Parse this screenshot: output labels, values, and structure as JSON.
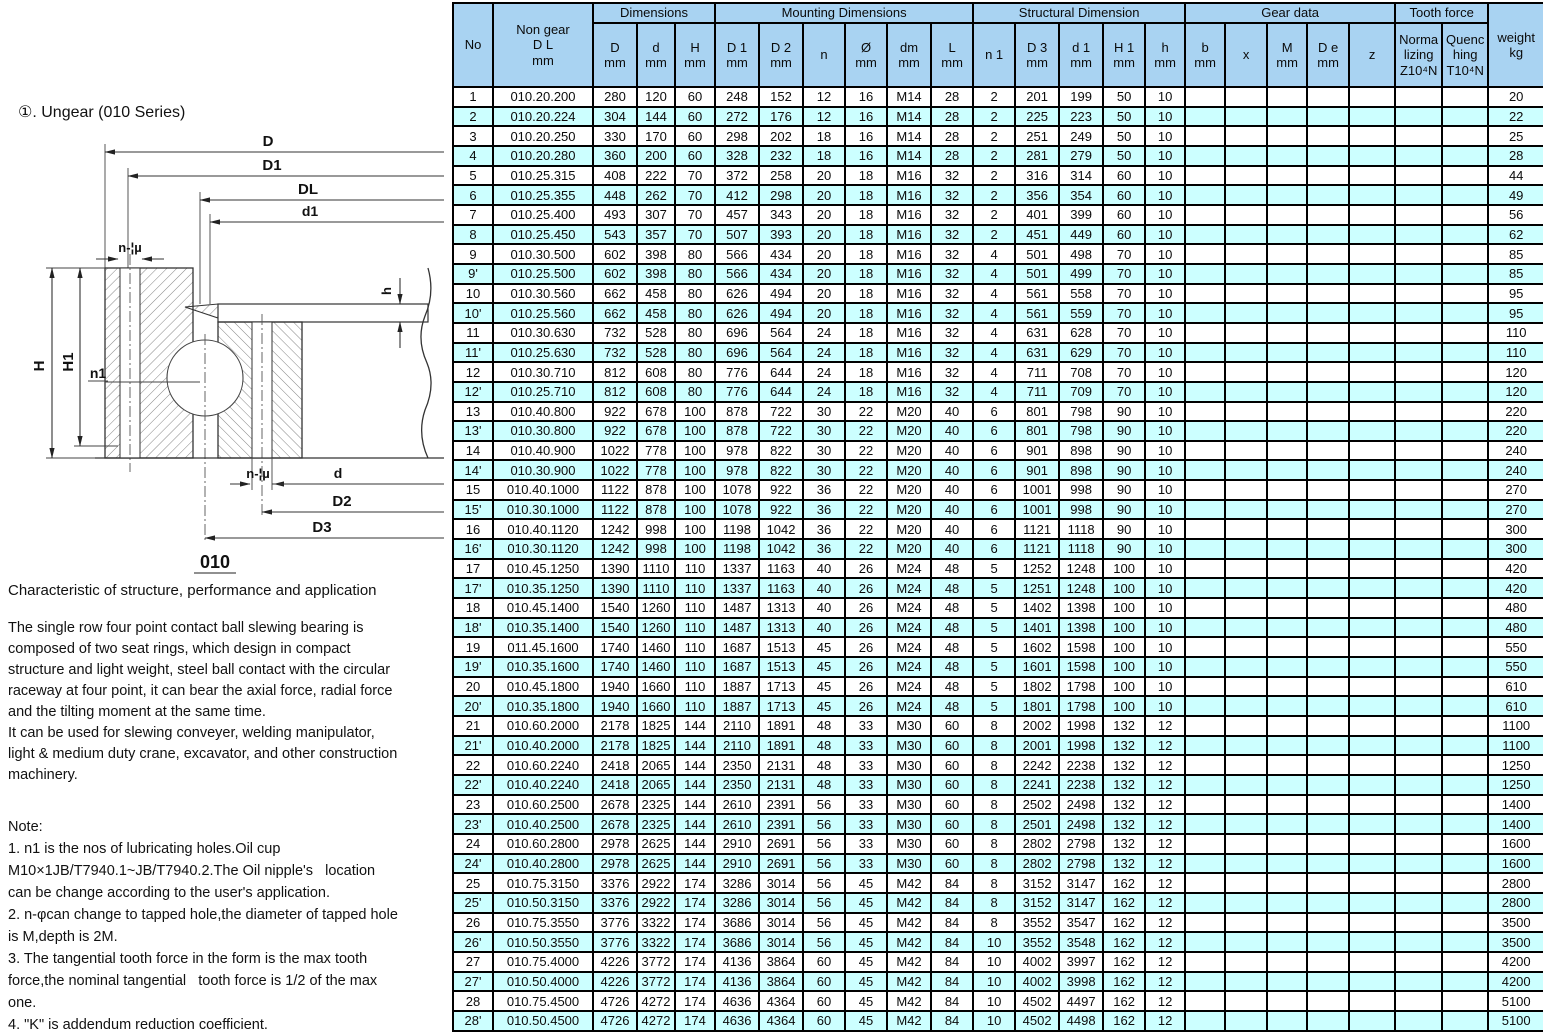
{
  "left_panel": {
    "series_title": "①. Ungear (010 Series)",
    "diagram": {
      "caption": "010",
      "labels": {
        "D": "D",
        "D1": "D1",
        "DL": "DL",
        "d1": "d1",
        "n_phi_top": "n-¦µ",
        "h": "h",
        "H": "H",
        "H1": "H1",
        "n1": "n1",
        "n_phi_bottom": "n-¦µ",
        "d": "d",
        "D2": "D2",
        "D3": "D3"
      }
    },
    "characteristic_heading": "Characteristic of structure, performance and application",
    "description": "The single row four point contact ball slewing bearing is\ncomposed of two seat rings, which design in compact\nstructure and light weight, steel ball contact with the circular\nraceway at four point, it can bear the axial force, radial force\nand the tilting moment at the same time.\nIt can be used for slewing conveyer, welding manipulator,\nlight & medium duty crane, excavator, and other construction\nmachinery.",
    "note": "Note:\n1. n1 is the nos of lubricating holes.Oil cup\nM10×1JB/T7940.1~JB/T7940.2.The Oil nipple's   location\ncan be change according to the user's application.\n2. n-φcan change to tapped hole,the diameter of tapped hole\nis M,depth is 2M.\n3. The tangential tooth force in the form is the max tooth\nforce,the nominal tangential   tooth force is 1/2 of the max\none.\n4. \"K\" is addendum reduction coefficient."
  },
  "table": {
    "header": {
      "no": "No",
      "non_gear": "Non gear\nD L\nmm",
      "groups": {
        "dimensions": "Dimensions",
        "mounting": "Mounting Dimensions",
        "structural": "Structural Dimension",
        "gear": "Gear data",
        "tooth": "Tooth force"
      },
      "weight": "weight\nkg",
      "sub": [
        "D\nmm",
        "d\nmm",
        "H\nmm",
        "D 1\nmm",
        "D 2\nmm",
        "n",
        "Ø\nmm",
        "dm\nmm",
        "L\nmm",
        "n 1",
        "D 3\nmm",
        "d 1\nmm",
        "H 1\nmm",
        "h\nmm",
        "b\nmm",
        "x",
        "M\nmm",
        "D e\nmm",
        "z",
        "Norma\nlizing\nZ10⁴N",
        "Quenc\nhing\nT10⁴N"
      ]
    },
    "column_keys": [
      "no",
      "model",
      "D",
      "d",
      "H",
      "D1",
      "D2",
      "n",
      "phi",
      "dm",
      "L",
      "n1",
      "D3",
      "d1",
      "H1",
      "h",
      "b",
      "x",
      "M",
      "De",
      "z",
      "normalizing",
      "quenching",
      "weight"
    ],
    "colors": {
      "header_bg": "#a9d3f2",
      "alt_row_bg": "#ccffff",
      "grid": "#000000"
    },
    "rows": [
      [
        "1",
        "010.20.200",
        "280",
        "120",
        "60",
        "248",
        "152",
        "12",
        "16",
        "M14",
        "28",
        "2",
        "201",
        "199",
        "50",
        "10",
        "",
        "",
        "",
        "",
        "",
        "",
        "",
        "20"
      ],
      [
        "2",
        "010.20.224",
        "304",
        "144",
        "60",
        "272",
        "176",
        "12",
        "16",
        "M14",
        "28",
        "2",
        "225",
        "223",
        "50",
        "10",
        "",
        "",
        "",
        "",
        "",
        "",
        "",
        "22"
      ],
      [
        "3",
        "010.20.250",
        "330",
        "170",
        "60",
        "298",
        "202",
        "18",
        "16",
        "M14",
        "28",
        "2",
        "251",
        "249",
        "50",
        "10",
        "",
        "",
        "",
        "",
        "",
        "",
        "",
        "25"
      ],
      [
        "4",
        "010.20.280",
        "360",
        "200",
        "60",
        "328",
        "232",
        "18",
        "16",
        "M14",
        "28",
        "2",
        "281",
        "279",
        "50",
        "10",
        "",
        "",
        "",
        "",
        "",
        "",
        "",
        "28"
      ],
      [
        "5",
        "010.25.315",
        "408",
        "222",
        "70",
        "372",
        "258",
        "20",
        "18",
        "M16",
        "32",
        "2",
        "316",
        "314",
        "60",
        "10",
        "",
        "",
        "",
        "",
        "",
        "",
        "",
        "44"
      ],
      [
        "6",
        "010.25.355",
        "448",
        "262",
        "70",
        "412",
        "298",
        "20",
        "18",
        "M16",
        "32",
        "2",
        "356",
        "354",
        "60",
        "10",
        "",
        "",
        "",
        "",
        "",
        "",
        "",
        "49"
      ],
      [
        "7",
        "010.25.400",
        "493",
        "307",
        "70",
        "457",
        "343",
        "20",
        "18",
        "M16",
        "32",
        "2",
        "401",
        "399",
        "60",
        "10",
        "",
        "",
        "",
        "",
        "",
        "",
        "",
        "56"
      ],
      [
        "8",
        "010.25.450",
        "543",
        "357",
        "70",
        "507",
        "393",
        "20",
        "18",
        "M16",
        "32",
        "2",
        "451",
        "449",
        "60",
        "10",
        "",
        "",
        "",
        "",
        "",
        "",
        "",
        "62"
      ],
      [
        "9",
        "010.30.500",
        "602",
        "398",
        "80",
        "566",
        "434",
        "20",
        "18",
        "M16",
        "32",
        "4",
        "501",
        "498",
        "70",
        "10",
        "",
        "",
        "",
        "",
        "",
        "",
        "",
        "85"
      ],
      [
        "9'",
        "010.25.500",
        "602",
        "398",
        "80",
        "566",
        "434",
        "20",
        "18",
        "M16",
        "32",
        "4",
        "501",
        "499",
        "70",
        "10",
        "",
        "",
        "",
        "",
        "",
        "",
        "",
        "85"
      ],
      [
        "10",
        "010.30.560",
        "662",
        "458",
        "80",
        "626",
        "494",
        "20",
        "18",
        "M16",
        "32",
        "4",
        "561",
        "558",
        "70",
        "10",
        "",
        "",
        "",
        "",
        "",
        "",
        "",
        "95"
      ],
      [
        "10'",
        "010.25.560",
        "662",
        "458",
        "80",
        "626",
        "494",
        "20",
        "18",
        "M16",
        "32",
        "4",
        "561",
        "559",
        "70",
        "10",
        "",
        "",
        "",
        "",
        "",
        "",
        "",
        "95"
      ],
      [
        "11",
        "010.30.630",
        "732",
        "528",
        "80",
        "696",
        "564",
        "24",
        "18",
        "M16",
        "32",
        "4",
        "631",
        "628",
        "70",
        "10",
        "",
        "",
        "",
        "",
        "",
        "",
        "",
        "110"
      ],
      [
        "11'",
        "010.25.630",
        "732",
        "528",
        "80",
        "696",
        "564",
        "24",
        "18",
        "M16",
        "32",
        "4",
        "631",
        "629",
        "70",
        "10",
        "",
        "",
        "",
        "",
        "",
        "",
        "",
        "110"
      ],
      [
        "12",
        "010.30.710",
        "812",
        "608",
        "80",
        "776",
        "644",
        "24",
        "18",
        "M16",
        "32",
        "4",
        "711",
        "708",
        "70",
        "10",
        "",
        "",
        "",
        "",
        "",
        "",
        "",
        "120"
      ],
      [
        "12'",
        "010.25.710",
        "812",
        "608",
        "80",
        "776",
        "644",
        "24",
        "18",
        "M16",
        "32",
        "4",
        "711",
        "709",
        "70",
        "10",
        "",
        "",
        "",
        "",
        "",
        "",
        "",
        "120"
      ],
      [
        "13",
        "010.40.800",
        "922",
        "678",
        "100",
        "878",
        "722",
        "30",
        "22",
        "M20",
        "40",
        "6",
        "801",
        "798",
        "90",
        "10",
        "",
        "",
        "",
        "",
        "",
        "",
        "",
        "220"
      ],
      [
        "13'",
        "010.30.800",
        "922",
        "678",
        "100",
        "878",
        "722",
        "30",
        "22",
        "M20",
        "40",
        "6",
        "801",
        "798",
        "90",
        "10",
        "",
        "",
        "",
        "",
        "",
        "",
        "",
        "220"
      ],
      [
        "14",
        "010.40.900",
        "1022",
        "778",
        "100",
        "978",
        "822",
        "30",
        "22",
        "M20",
        "40",
        "6",
        "901",
        "898",
        "90",
        "10",
        "",
        "",
        "",
        "",
        "",
        "",
        "",
        "240"
      ],
      [
        "14'",
        "010.30.900",
        "1022",
        "778",
        "100",
        "978",
        "822",
        "30",
        "22",
        "M20",
        "40",
        "6",
        "901",
        "898",
        "90",
        "10",
        "",
        "",
        "",
        "",
        "",
        "",
        "",
        "240"
      ],
      [
        "15",
        "010.40.1000",
        "1122",
        "878",
        "100",
        "1078",
        "922",
        "36",
        "22",
        "M20",
        "40",
        "6",
        "1001",
        "998",
        "90",
        "10",
        "",
        "",
        "",
        "",
        "",
        "",
        "",
        "270"
      ],
      [
        "15'",
        "010.30.1000",
        "1122",
        "878",
        "100",
        "1078",
        "922",
        "36",
        "22",
        "M20",
        "40",
        "6",
        "1001",
        "998",
        "90",
        "10",
        "",
        "",
        "",
        "",
        "",
        "",
        "",
        "270"
      ],
      [
        "16",
        "010.40.1120",
        "1242",
        "998",
        "100",
        "1198",
        "1042",
        "36",
        "22",
        "M20",
        "40",
        "6",
        "1121",
        "1118",
        "90",
        "10",
        "",
        "",
        "",
        "",
        "",
        "",
        "",
        "300"
      ],
      [
        "16'",
        "010.30.1120",
        "1242",
        "998",
        "100",
        "1198",
        "1042",
        "36",
        "22",
        "M20",
        "40",
        "6",
        "1121",
        "1118",
        "90",
        "10",
        "",
        "",
        "",
        "",
        "",
        "",
        "",
        "300"
      ],
      [
        "17",
        "010.45.1250",
        "1390",
        "1110",
        "110",
        "1337",
        "1163",
        "40",
        "26",
        "M24",
        "48",
        "5",
        "1252",
        "1248",
        "100",
        "10",
        "",
        "",
        "",
        "",
        "",
        "",
        "",
        "420"
      ],
      [
        "17'",
        "010.35.1250",
        "1390",
        "1110",
        "110",
        "1337",
        "1163",
        "40",
        "26",
        "M24",
        "48",
        "5",
        "1251",
        "1248",
        "100",
        "10",
        "",
        "",
        "",
        "",
        "",
        "",
        "",
        "420"
      ],
      [
        "18",
        "010.45.1400",
        "1540",
        "1260",
        "110",
        "1487",
        "1313",
        "40",
        "26",
        "M24",
        "48",
        "5",
        "1402",
        "1398",
        "100",
        "10",
        "",
        "",
        "",
        "",
        "",
        "",
        "",
        "480"
      ],
      [
        "18'",
        "010.35.1400",
        "1540",
        "1260",
        "110",
        "1487",
        "1313",
        "40",
        "26",
        "M24",
        "48",
        "5",
        "1401",
        "1398",
        "100",
        "10",
        "",
        "",
        "",
        "",
        "",
        "",
        "",
        "480"
      ],
      [
        "19",
        "011.45.1600",
        "1740",
        "1460",
        "110",
        "1687",
        "1513",
        "45",
        "26",
        "M24",
        "48",
        "5",
        "1602",
        "1598",
        "100",
        "10",
        "",
        "",
        "",
        "",
        "",
        "",
        "",
        "550"
      ],
      [
        "19'",
        "010.35.1600",
        "1740",
        "1460",
        "110",
        "1687",
        "1513",
        "45",
        "26",
        "M24",
        "48",
        "5",
        "1601",
        "1598",
        "100",
        "10",
        "",
        "",
        "",
        "",
        "",
        "",
        "",
        "550"
      ],
      [
        "20",
        "010.45.1800",
        "1940",
        "1660",
        "110",
        "1887",
        "1713",
        "45",
        "26",
        "M24",
        "48",
        "5",
        "1802",
        "1798",
        "100",
        "10",
        "",
        "",
        "",
        "",
        "",
        "",
        "",
        "610"
      ],
      [
        "20'",
        "010.35.1800",
        "1940",
        "1660",
        "110",
        "1887",
        "1713",
        "45",
        "26",
        "M24",
        "48",
        "5",
        "1801",
        "1798",
        "100",
        "10",
        "",
        "",
        "",
        "",
        "",
        "",
        "",
        "610"
      ],
      [
        "21",
        "010.60.2000",
        "2178",
        "1825",
        "144",
        "2110",
        "1891",
        "48",
        "33",
        "M30",
        "60",
        "8",
        "2002",
        "1998",
        "132",
        "12",
        "",
        "",
        "",
        "",
        "",
        "",
        "",
        "1100"
      ],
      [
        "21'",
        "010.40.2000",
        "2178",
        "1825",
        "144",
        "2110",
        "1891",
        "48",
        "33",
        "M30",
        "60",
        "8",
        "2001",
        "1998",
        "132",
        "12",
        "",
        "",
        "",
        "",
        "",
        "",
        "",
        "1100"
      ],
      [
        "22",
        "010.60.2240",
        "2418",
        "2065",
        "144",
        "2350",
        "2131",
        "48",
        "33",
        "M30",
        "60",
        "8",
        "2242",
        "2238",
        "132",
        "12",
        "",
        "",
        "",
        "",
        "",
        "",
        "",
        "1250"
      ],
      [
        "22'",
        "010.40.2240",
        "2418",
        "2065",
        "144",
        "2350",
        "2131",
        "48",
        "33",
        "M30",
        "60",
        "8",
        "2241",
        "2238",
        "132",
        "12",
        "",
        "",
        "",
        "",
        "",
        "",
        "",
        "1250"
      ],
      [
        "23",
        "010.60.2500",
        "2678",
        "2325",
        "144",
        "2610",
        "2391",
        "56",
        "33",
        "M30",
        "60",
        "8",
        "2502",
        "2498",
        "132",
        "12",
        "",
        "",
        "",
        "",
        "",
        "",
        "",
        "1400"
      ],
      [
        "23'",
        "010.40.2500",
        "2678",
        "2325",
        "144",
        "2610",
        "2391",
        "56",
        "33",
        "M30",
        "60",
        "8",
        "2501",
        "2498",
        "132",
        "12",
        "",
        "",
        "",
        "",
        "",
        "",
        "",
        "1400"
      ],
      [
        "24",
        "010.60.2800",
        "2978",
        "2625",
        "144",
        "2910",
        "2691",
        "56",
        "33",
        "M30",
        "60",
        "8",
        "2802",
        "2798",
        "132",
        "12",
        "",
        "",
        "",
        "",
        "",
        "",
        "",
        "1600"
      ],
      [
        "24'",
        "010.40.2800",
        "2978",
        "2625",
        "144",
        "2910",
        "2691",
        "56",
        "33",
        "M30",
        "60",
        "8",
        "2802",
        "2798",
        "132",
        "12",
        "",
        "",
        "",
        "",
        "",
        "",
        "",
        "1600"
      ],
      [
        "25",
        "010.75.3150",
        "3376",
        "2922",
        "174",
        "3286",
        "3014",
        "56",
        "45",
        "M42",
        "84",
        "8",
        "3152",
        "3147",
        "162",
        "12",
        "",
        "",
        "",
        "",
        "",
        "",
        "",
        "2800"
      ],
      [
        "25'",
        "010.50.3150",
        "3376",
        "2922",
        "174",
        "3286",
        "3014",
        "56",
        "45",
        "M42",
        "84",
        "8",
        "3152",
        "3147",
        "162",
        "12",
        "",
        "",
        "",
        "",
        "",
        "",
        "",
        "2800"
      ],
      [
        "26",
        "010.75.3550",
        "3776",
        "3322",
        "174",
        "3686",
        "3014",
        "56",
        "45",
        "M42",
        "84",
        "8",
        "3552",
        "3547",
        "162",
        "12",
        "",
        "",
        "",
        "",
        "",
        "",
        "",
        "3500"
      ],
      [
        "26'",
        "010.50.3550",
        "3776",
        "3322",
        "174",
        "3686",
        "3014",
        "56",
        "45",
        "M42",
        "84",
        "10",
        "3552",
        "3548",
        "162",
        "12",
        "",
        "",
        "",
        "",
        "",
        "",
        "",
        "3500"
      ],
      [
        "27",
        "010.75.4000",
        "4226",
        "3772",
        "174",
        "4136",
        "3864",
        "60",
        "45",
        "M42",
        "84",
        "10",
        "4002",
        "3997",
        "162",
        "12",
        "",
        "",
        "",
        "",
        "",
        "",
        "",
        "4200"
      ],
      [
        "27'",
        "010.50.4000",
        "4226",
        "3772",
        "174",
        "4136",
        "3864",
        "60",
        "45",
        "M42",
        "84",
        "10",
        "4002",
        "3998",
        "162",
        "12",
        "",
        "",
        "",
        "",
        "",
        "",
        "",
        "4200"
      ],
      [
        "28",
        "010.75.4500",
        "4726",
        "4272",
        "174",
        "4636",
        "4364",
        "60",
        "45",
        "M42",
        "84",
        "10",
        "4502",
        "4497",
        "162",
        "12",
        "",
        "",
        "",
        "",
        "",
        "",
        "",
        "5100"
      ],
      [
        "28'",
        "010.50.4500",
        "4726",
        "4272",
        "174",
        "4636",
        "4364",
        "60",
        "45",
        "M42",
        "84",
        "10",
        "4502",
        "4498",
        "162",
        "12",
        "",
        "",
        "",
        "",
        "",
        "",
        "",
        "5100"
      ]
    ]
  }
}
